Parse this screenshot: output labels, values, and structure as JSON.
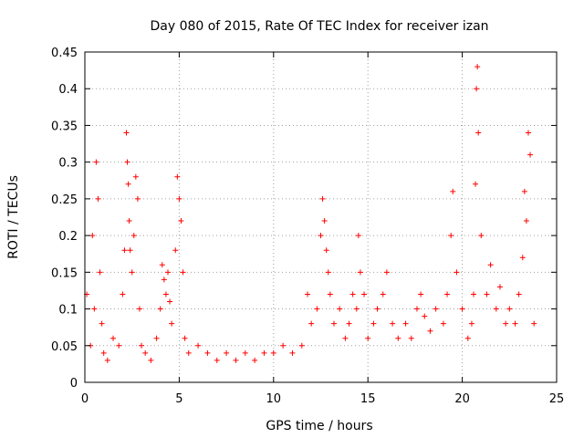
{
  "chart_data": {
    "type": "scatter",
    "title": "Day 080 of 2015, Rate Of TEC Index for receiver izan",
    "xlabel": "GPS time / hours",
    "ylabel": "ROTI / TECUs",
    "xlim": [
      0,
      25
    ],
    "ylim": [
      0,
      0.45
    ],
    "xticks": [
      0,
      5,
      10,
      15,
      20,
      25
    ],
    "xtick_labels": [
      "0",
      "5",
      "10",
      "15",
      "20",
      "25"
    ],
    "yticks": [
      0,
      0.05,
      0.1,
      0.15,
      0.2,
      0.25,
      0.3,
      0.35,
      0.4,
      0.45
    ],
    "ytick_labels": [
      "0",
      "0.05",
      "0.1",
      "0.15",
      "0.2",
      "0.25",
      "0.3",
      "0.35",
      "0.4",
      "0.45"
    ],
    "grid": true,
    "marker": "+",
    "color": "#ff0000",
    "series": [
      {
        "x": [
          0.1,
          0.3,
          0.4,
          0.5,
          0.6,
          0.7,
          0.8,
          0.9,
          1.0,
          1.2,
          1.5,
          1.8,
          2.0,
          2.1,
          2.2,
          2.25,
          2.3,
          2.35,
          2.4,
          2.5,
          2.6,
          2.7,
          2.8,
          2.9,
          3.0,
          3.2,
          3.5,
          3.8,
          4.0,
          4.1,
          4.2,
          4.3,
          4.4,
          4.5,
          4.6,
          4.8,
          4.9,
          5.0,
          5.1,
          5.2,
          5.3,
          5.5,
          6.0,
          6.5,
          7.0,
          7.5,
          8.0,
          8.5,
          9.0,
          9.5,
          10.0,
          10.5,
          11.0,
          11.5,
          11.8,
          12.0,
          12.3,
          12.5,
          12.6,
          12.7,
          12.8,
          12.9,
          13.0,
          13.2,
          13.5,
          13.8,
          14.0,
          14.2,
          14.4,
          14.5,
          14.6,
          14.8,
          15.0,
          15.3,
          15.5,
          15.8,
          16.0,
          16.3,
          16.6,
          17.0,
          17.3,
          17.6,
          17.8,
          18.0,
          18.3,
          18.6,
          19.0,
          19.2,
          19.4,
          19.5,
          19.7,
          20.0,
          20.3,
          20.5,
          20.6,
          20.7,
          20.75,
          20.8,
          20.85,
          21.0,
          21.3,
          21.5,
          21.8,
          22.0,
          22.3,
          22.5,
          22.8,
          23.0,
          23.2,
          23.3,
          23.4,
          23.5,
          23.6,
          23.8
        ],
        "y": [
          0.12,
          0.05,
          0.2,
          0.1,
          0.3,
          0.25,
          0.15,
          0.08,
          0.04,
          0.03,
          0.06,
          0.05,
          0.12,
          0.18,
          0.34,
          0.3,
          0.27,
          0.22,
          0.18,
          0.15,
          0.2,
          0.28,
          0.25,
          0.1,
          0.05,
          0.04,
          0.03,
          0.06,
          0.1,
          0.16,
          0.14,
          0.12,
          0.15,
          0.11,
          0.08,
          0.18,
          0.28,
          0.25,
          0.22,
          0.15,
          0.06,
          0.04,
          0.05,
          0.04,
          0.03,
          0.04,
          0.03,
          0.04,
          0.03,
          0.04,
          0.04,
          0.05,
          0.04,
          0.05,
          0.12,
          0.08,
          0.1,
          0.2,
          0.25,
          0.22,
          0.18,
          0.15,
          0.12,
          0.08,
          0.1,
          0.06,
          0.08,
          0.12,
          0.1,
          0.2,
          0.15,
          0.12,
          0.06,
          0.08,
          0.1,
          0.12,
          0.15,
          0.08,
          0.06,
          0.08,
          0.06,
          0.1,
          0.12,
          0.09,
          0.07,
          0.1,
          0.08,
          0.12,
          0.2,
          0.26,
          0.15,
          0.1,
          0.06,
          0.08,
          0.12,
          0.27,
          0.4,
          0.43,
          0.34,
          0.2,
          0.12,
          0.16,
          0.1,
          0.13,
          0.08,
          0.1,
          0.08,
          0.12,
          0.17,
          0.26,
          0.22,
          0.34,
          0.31,
          0.08
        ]
      }
    ]
  }
}
